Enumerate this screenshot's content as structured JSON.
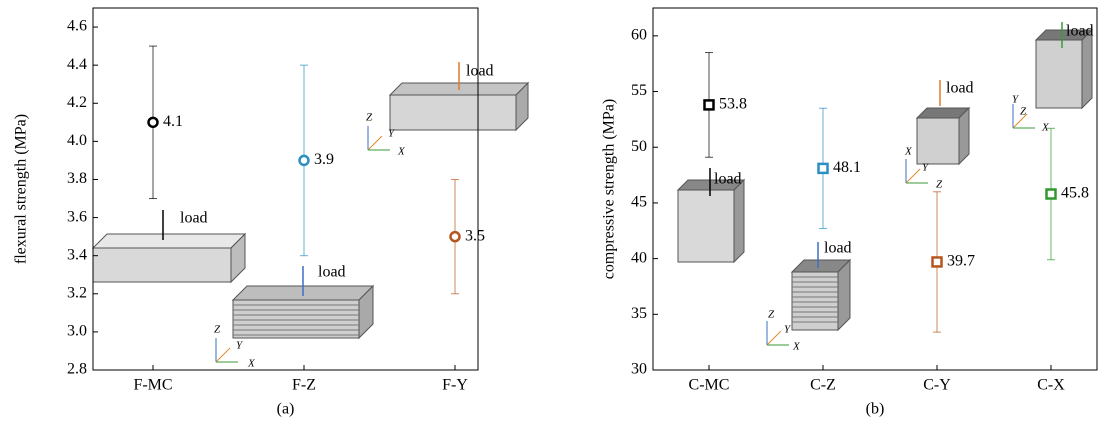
{
  "chart_data": [
    {
      "type": "errorbar",
      "ylabel": "flexural strength (MPa)",
      "caption": "(a)",
      "categories": [
        "F-MC",
        "F-Z",
        "F-Y"
      ],
      "values": [
        4.1,
        3.9,
        3.5
      ],
      "errors": [
        0.4,
        0.5,
        0.3
      ],
      "colors": [
        "#000000",
        "#2a8fc1",
        "#b5561e"
      ],
      "marker": "circle",
      "ylim": [
        2.8,
        4.7
      ],
      "yticks": [
        2.8,
        {
          "value": 3,
          "label": "3.0"
        },
        3.2,
        3.4,
        3.6,
        3.8,
        {
          "value": 4,
          "label": "4.0"
        },
        4.2,
        4.4,
        4.6
      ],
      "annotations": [
        "load",
        "load",
        "load",
        "Z",
        "Y",
        "X",
        "Z",
        "Y",
        "X"
      ]
    },
    {
      "type": "errorbar",
      "ylabel": "compressive strength (MPa)",
      "caption": "(b)",
      "categories": [
        "C-MC",
        "C-Z",
        "C-Y",
        "C-X"
      ],
      "values": [
        53.8,
        48.1,
        39.7,
        45.8
      ],
      "errors": [
        4.7,
        5.4,
        6.3,
        5.9
      ],
      "colors": [
        "#000000",
        "#2a8fc1",
        "#b5561e",
        "#2e9a2e"
      ],
      "marker": "square",
      "ylim": [
        30,
        62.5
      ],
      "yticks": [
        30,
        35,
        40,
        45,
        50,
        55,
        60
      ],
      "annotations": [
        "load",
        "load",
        "load",
        "load",
        "Z",
        "Y",
        "X",
        "X",
        "Y",
        "Z",
        "Y",
        "Z",
        "X"
      ]
    }
  ]
}
